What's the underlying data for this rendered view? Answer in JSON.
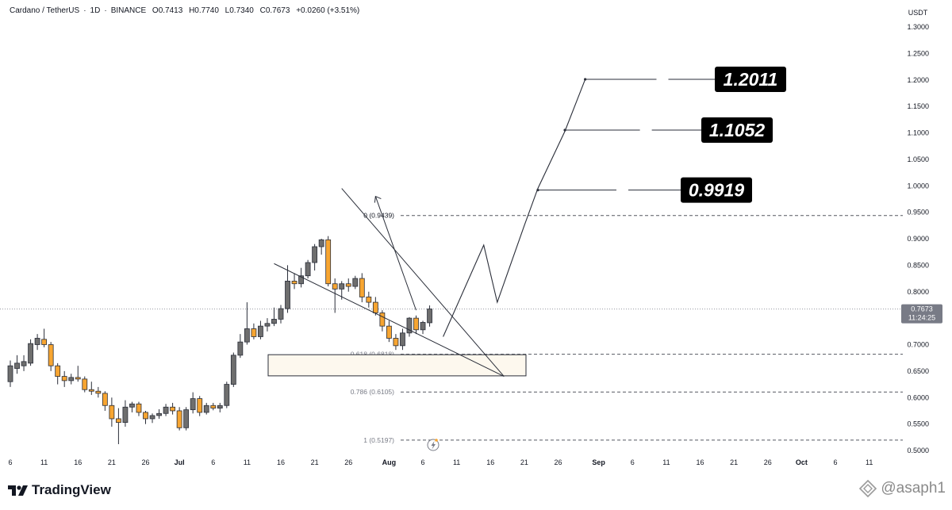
{
  "header": {
    "symbol": "Cardano / TetherUS",
    "interval": "1D",
    "exchange": "BINANCE",
    "open": "O0.7413",
    "high": "H0.7740",
    "low": "L0.7340",
    "close": "C0.7673",
    "change": "+0.0260 (+3.51%)"
  },
  "currency": "USDT",
  "current_price": {
    "value": "0.7673",
    "countdown": "11:24:25"
  },
  "footer": {
    "brand": "TradingView",
    "watermark": "@asaph1"
  },
  "colors": {
    "up": "#6e6e6e",
    "down": "#f7a531",
    "price_tag": "#787b86",
    "target_box": "#000000"
  },
  "icons": [
    "tradingview-logo-icon",
    "lightning-icon",
    "watermark-icon"
  ],
  "chart_data": {
    "type": "candlestick",
    "y_axis": {
      "ylim": [
        0.5,
        1.3
      ],
      "ticks": [
        "1.3000",
        "1.2500",
        "1.2000",
        "1.1500",
        "1.1000",
        "1.0500",
        "1.0000",
        "0.9500",
        "0.9000",
        "0.8500",
        "0.8000",
        "0.7500",
        "0.7000",
        "0.6500",
        "0.6000",
        "0.5500",
        "0.5000"
      ]
    },
    "x_axis": {
      "ticks": [
        {
          "label": "6",
          "i": 0
        },
        {
          "label": "11",
          "i": 5
        },
        {
          "label": "16",
          "i": 10
        },
        {
          "label": "21",
          "i": 15
        },
        {
          "label": "26",
          "i": 20
        },
        {
          "label": "Jul",
          "i": 25
        },
        {
          "label": "6",
          "i": 30
        },
        {
          "label": "11",
          "i": 35
        },
        {
          "label": "16",
          "i": 40
        },
        {
          "label": "21",
          "i": 45
        },
        {
          "label": "26",
          "i": 50
        },
        {
          "label": "Aug",
          "i": 56
        },
        {
          "label": "6",
          "i": 61
        },
        {
          "label": "11",
          "i": 66
        },
        {
          "label": "16",
          "i": 71
        },
        {
          "label": "21",
          "i": 76
        },
        {
          "label": "26",
          "i": 81
        },
        {
          "label": "Sep",
          "i": 87
        },
        {
          "label": "6",
          "i": 92
        },
        {
          "label": "11",
          "i": 97
        },
        {
          "label": "16",
          "i": 102
        },
        {
          "label": "21",
          "i": 107
        },
        {
          "label": "26",
          "i": 112
        },
        {
          "label": "Oct",
          "i": 117
        },
        {
          "label": "6",
          "i": 122
        },
        {
          "label": "11",
          "i": 127
        }
      ]
    },
    "candles": [
      {
        "o": 0.63,
        "h": 0.67,
        "l": 0.62,
        "c": 0.66
      },
      {
        "o": 0.655,
        "h": 0.68,
        "l": 0.645,
        "c": 0.665
      },
      {
        "o": 0.66,
        "h": 0.68,
        "l": 0.65,
        "c": 0.668
      },
      {
        "o": 0.665,
        "h": 0.71,
        "l": 0.66,
        "c": 0.702
      },
      {
        "o": 0.7,
        "h": 0.72,
        "l": 0.69,
        "c": 0.712
      },
      {
        "o": 0.71,
        "h": 0.73,
        "l": 0.695,
        "c": 0.7
      },
      {
        "o": 0.7,
        "h": 0.705,
        "l": 0.65,
        "c": 0.66
      },
      {
        "o": 0.66,
        "h": 0.665,
        "l": 0.625,
        "c": 0.64
      },
      {
        "o": 0.64,
        "h": 0.65,
        "l": 0.62,
        "c": 0.632
      },
      {
        "o": 0.632,
        "h": 0.645,
        "l": 0.625,
        "c": 0.638
      },
      {
        "o": 0.638,
        "h": 0.66,
        "l": 0.63,
        "c": 0.635
      },
      {
        "o": 0.635,
        "h": 0.64,
        "l": 0.61,
        "c": 0.615
      },
      {
        "o": 0.615,
        "h": 0.63,
        "l": 0.605,
        "c": 0.612
      },
      {
        "o": 0.612,
        "h": 0.62,
        "l": 0.6,
        "c": 0.608
      },
      {
        "o": 0.608,
        "h": 0.612,
        "l": 0.575,
        "c": 0.585
      },
      {
        "o": 0.585,
        "h": 0.6,
        "l": 0.545,
        "c": 0.56
      },
      {
        "o": 0.56,
        "h": 0.58,
        "l": 0.512,
        "c": 0.553
      },
      {
        "o": 0.553,
        "h": 0.595,
        "l": 0.545,
        "c": 0.582
      },
      {
        "o": 0.582,
        "h": 0.592,
        "l": 0.572,
        "c": 0.588
      },
      {
        "o": 0.588,
        "h": 0.592,
        "l": 0.565,
        "c": 0.572
      },
      {
        "o": 0.572,
        "h": 0.575,
        "l": 0.55,
        "c": 0.56
      },
      {
        "o": 0.56,
        "h": 0.57,
        "l": 0.552,
        "c": 0.566
      },
      {
        "o": 0.566,
        "h": 0.578,
        "l": 0.56,
        "c": 0.57
      },
      {
        "o": 0.57,
        "h": 0.588,
        "l": 0.565,
        "c": 0.582
      },
      {
        "o": 0.582,
        "h": 0.59,
        "l": 0.568,
        "c": 0.575
      },
      {
        "o": 0.575,
        "h": 0.582,
        "l": 0.538,
        "c": 0.543
      },
      {
        "o": 0.543,
        "h": 0.582,
        "l": 0.538,
        "c": 0.577
      },
      {
        "o": 0.577,
        "h": 0.61,
        "l": 0.57,
        "c": 0.598
      },
      {
        "o": 0.598,
        "h": 0.603,
        "l": 0.565,
        "c": 0.572
      },
      {
        "o": 0.572,
        "h": 0.59,
        "l": 0.568,
        "c": 0.585
      },
      {
        "o": 0.585,
        "h": 0.59,
        "l": 0.576,
        "c": 0.58
      },
      {
        "o": 0.58,
        "h": 0.59,
        "l": 0.572,
        "c": 0.585
      },
      {
        "o": 0.585,
        "h": 0.63,
        "l": 0.58,
        "c": 0.625
      },
      {
        "o": 0.625,
        "h": 0.685,
        "l": 0.62,
        "c": 0.68
      },
      {
        "o": 0.68,
        "h": 0.72,
        "l": 0.675,
        "c": 0.705
      },
      {
        "o": 0.705,
        "h": 0.78,
        "l": 0.7,
        "c": 0.73
      },
      {
        "o": 0.73,
        "h": 0.74,
        "l": 0.71,
        "c": 0.715
      },
      {
        "o": 0.715,
        "h": 0.745,
        "l": 0.71,
        "c": 0.735
      },
      {
        "o": 0.735,
        "h": 0.75,
        "l": 0.725,
        "c": 0.74
      },
      {
        "o": 0.74,
        "h": 0.77,
        "l": 0.735,
        "c": 0.748
      },
      {
        "o": 0.748,
        "h": 0.775,
        "l": 0.74,
        "c": 0.768
      },
      {
        "o": 0.768,
        "h": 0.85,
        "l": 0.76,
        "c": 0.82
      },
      {
        "o": 0.82,
        "h": 0.835,
        "l": 0.805,
        "c": 0.815
      },
      {
        "o": 0.815,
        "h": 0.845,
        "l": 0.808,
        "c": 0.83
      },
      {
        "o": 0.83,
        "h": 0.86,
        "l": 0.825,
        "c": 0.855
      },
      {
        "o": 0.855,
        "h": 0.89,
        "l": 0.84,
        "c": 0.885
      },
      {
        "o": 0.885,
        "h": 0.9,
        "l": 0.87,
        "c": 0.898
      },
      {
        "o": 0.898,
        "h": 0.905,
        "l": 0.81,
        "c": 0.815
      },
      {
        "o": 0.815,
        "h": 0.825,
        "l": 0.76,
        "c": 0.805
      },
      {
        "o": 0.805,
        "h": 0.82,
        "l": 0.785,
        "c": 0.815
      },
      {
        "o": 0.815,
        "h": 0.825,
        "l": 0.8,
        "c": 0.81
      },
      {
        "o": 0.81,
        "h": 0.83,
        "l": 0.805,
        "c": 0.825
      },
      {
        "o": 0.825,
        "h": 0.835,
        "l": 0.78,
        "c": 0.79
      },
      {
        "o": 0.79,
        "h": 0.8,
        "l": 0.77,
        "c": 0.78
      },
      {
        "o": 0.78,
        "h": 0.79,
        "l": 0.755,
        "c": 0.76
      },
      {
        "o": 0.76,
        "h": 0.765,
        "l": 0.725,
        "c": 0.735
      },
      {
        "o": 0.735,
        "h": 0.745,
        "l": 0.705,
        "c": 0.712
      },
      {
        "o": 0.712,
        "h": 0.72,
        "l": 0.69,
        "c": 0.698
      },
      {
        "o": 0.698,
        "h": 0.73,
        "l": 0.69,
        "c": 0.722
      },
      {
        "o": 0.722,
        "h": 0.752,
        "l": 0.715,
        "c": 0.75
      },
      {
        "o": 0.75,
        "h": 0.755,
        "l": 0.72,
        "c": 0.728
      },
      {
        "o": 0.728,
        "h": 0.745,
        "l": 0.72,
        "c": 0.742
      },
      {
        "o": 0.7413,
        "h": 0.774,
        "l": 0.734,
        "c": 0.7673
      }
    ],
    "fib_levels": [
      {
        "label": "0 (0.9439)",
        "value": 0.9439
      },
      {
        "label": "0.618 (0.6818)",
        "value": 0.6818
      },
      {
        "label": "0.786 (0.6105)",
        "value": 0.6105
      },
      {
        "label": "1 (0.5197)",
        "value": 0.5197
      }
    ],
    "demand_zone": {
      "from_i": 61,
      "to_i": 71,
      "top": 0.681,
      "bottom": 0.641
    },
    "wedge_upper": [
      {
        "i": 49,
        "p": 0.995
      },
      {
        "i": 73,
        "p": 0.64
      }
    ],
    "wedge_lower": [
      {
        "i": 39,
        "p": 0.853
      },
      {
        "i": 73,
        "p": 0.64
      }
    ],
    "arrow_line": [
      {
        "i": 60,
        "p": 0.765
      },
      {
        "i": 54,
        "p": 0.98
      }
    ],
    "projection_path": [
      {
        "i": 64,
        "p": 0.715
      },
      {
        "i": 70,
        "p": 0.888
      },
      {
        "i": 72,
        "p": 0.78
      },
      {
        "i": 76,
        "p": 0.925
      },
      {
        "i": 78,
        "p": 0.995
      },
      {
        "i": 82,
        "p": 1.103
      },
      {
        "i": 85,
        "p": 1.201
      }
    ],
    "targets": [
      {
        "label": "1.2011",
        "value": 1.2011,
        "from_i": 85
      },
      {
        "label": "1.1052",
        "value": 1.1052,
        "from_i": 82
      },
      {
        "label": "0.9919",
        "value": 0.9919,
        "from_i": 78
      }
    ],
    "current_price": 0.7673
  }
}
